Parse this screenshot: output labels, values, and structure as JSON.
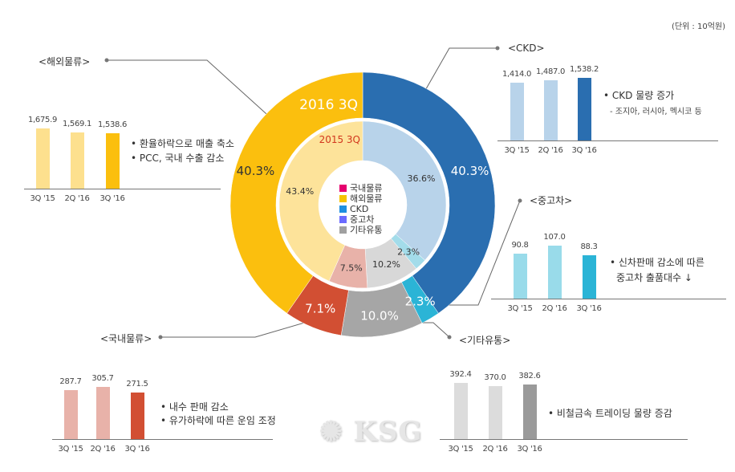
{
  "unit_label": "(단위 : 10억원)",
  "chart_data": [
    {
      "type": "pie",
      "title": "2016 3Q",
      "ring": "outer",
      "categories": [
        "CKD",
        "중고차",
        "기타유통",
        "국내물류",
        "해외물류"
      ],
      "values": [
        40.3,
        2.3,
        10.0,
        7.1,
        40.3
      ],
      "labels": [
        "40.3%",
        "2.3%",
        "10.0%",
        "7.1%",
        "40.3%"
      ],
      "colors": [
        "#2a6eb0",
        "#2bb4d6",
        "#a6a6a6",
        "#d24f33",
        "#fbbf0e"
      ]
    },
    {
      "type": "pie",
      "title": "2015 3Q",
      "ring": "inner",
      "categories": [
        "CKD",
        "중고차",
        "기타유통",
        "국내물류",
        "해외물류"
      ],
      "values": [
        36.6,
        2.3,
        10.2,
        7.5,
        43.4
      ],
      "labels": [
        "36.6%",
        "2.3%",
        "10.2%",
        "7.5%",
        "43.4%"
      ],
      "colors": [
        "#b8d3ea",
        "#a3dcea",
        "#d8d8d8",
        "#e8b2a9",
        "#fde39a"
      ]
    },
    {
      "type": "bar",
      "title": "<해외물류>",
      "categories": [
        "3Q '15",
        "2Q '16",
        "3Q '16"
      ],
      "values": [
        1675.9,
        1569.1,
        1538.6
      ],
      "labels": [
        "1,675.9",
        "1,569.1",
        "1,538.6"
      ],
      "colors": [
        "#fde08e",
        "#fde08e",
        "#fbbf0e"
      ],
      "notes": [
        "• 환율하락으로 매출 축소",
        "• PCC, 국내 수출 감소"
      ]
    },
    {
      "type": "bar",
      "title": "<CKD>",
      "categories": [
        "3Q '15",
        "2Q '16",
        "3Q '16"
      ],
      "values": [
        1414.0,
        1487.0,
        1538.2
      ],
      "labels": [
        "1,414.0",
        "1,487.0",
        "1,538.2"
      ],
      "colors": [
        "#b8d3ea",
        "#b8d3ea",
        "#2a6eb0"
      ],
      "notes": [
        "• CKD 물량 증가",
        "- 조지아, 러시아, 멕시코 등"
      ]
    },
    {
      "type": "bar",
      "title": "<중고차>",
      "categories": [
        "3Q '15",
        "2Q '16",
        "3Q '16"
      ],
      "values": [
        90.8,
        107.0,
        88.3
      ],
      "labels": [
        "90.8",
        "107.0",
        "88.3"
      ],
      "colors": [
        "#99dbea",
        "#99dbea",
        "#2bb4d6"
      ],
      "notes": [
        "• 신차판매 감소에 따른",
        "중고차 출품대수 ↓"
      ]
    },
    {
      "type": "bar",
      "title": "<국내물류>",
      "categories": [
        "3Q '15",
        "2Q '16",
        "3Q '16"
      ],
      "values": [
        287.7,
        305.7,
        271.5
      ],
      "labels": [
        "287.7",
        "305.7",
        "271.5"
      ],
      "colors": [
        "#e8b2a9",
        "#e8b2a9",
        "#d24f33"
      ],
      "notes": [
        "• 내수 판매 감소",
        "• 유가하락에 따른 운임 조정"
      ]
    },
    {
      "type": "bar",
      "title": "<기타유통>",
      "categories": [
        "3Q '15",
        "2Q '16",
        "3Q '16"
      ],
      "values": [
        392.4,
        370.0,
        382.6
      ],
      "labels": [
        "392.4",
        "370.0",
        "382.6"
      ],
      "colors": [
        "#dcdcdc",
        "#dcdcdc",
        "#9a9a9a"
      ],
      "notes": [
        "• 비철금속 트레이딩 물량 증감"
      ]
    }
  ],
  "legend": [
    {
      "label": "국내물류",
      "color": "#e5006e"
    },
    {
      "label": "해외물류",
      "color": "#f5c400"
    },
    {
      "label": "CKD",
      "color": "#1d8fe0"
    },
    {
      "label": "중고차",
      "color": "#6b6bff"
    },
    {
      "label": "기타유통",
      "color": "#a0a0a0"
    }
  ],
  "watermark": "KSG"
}
